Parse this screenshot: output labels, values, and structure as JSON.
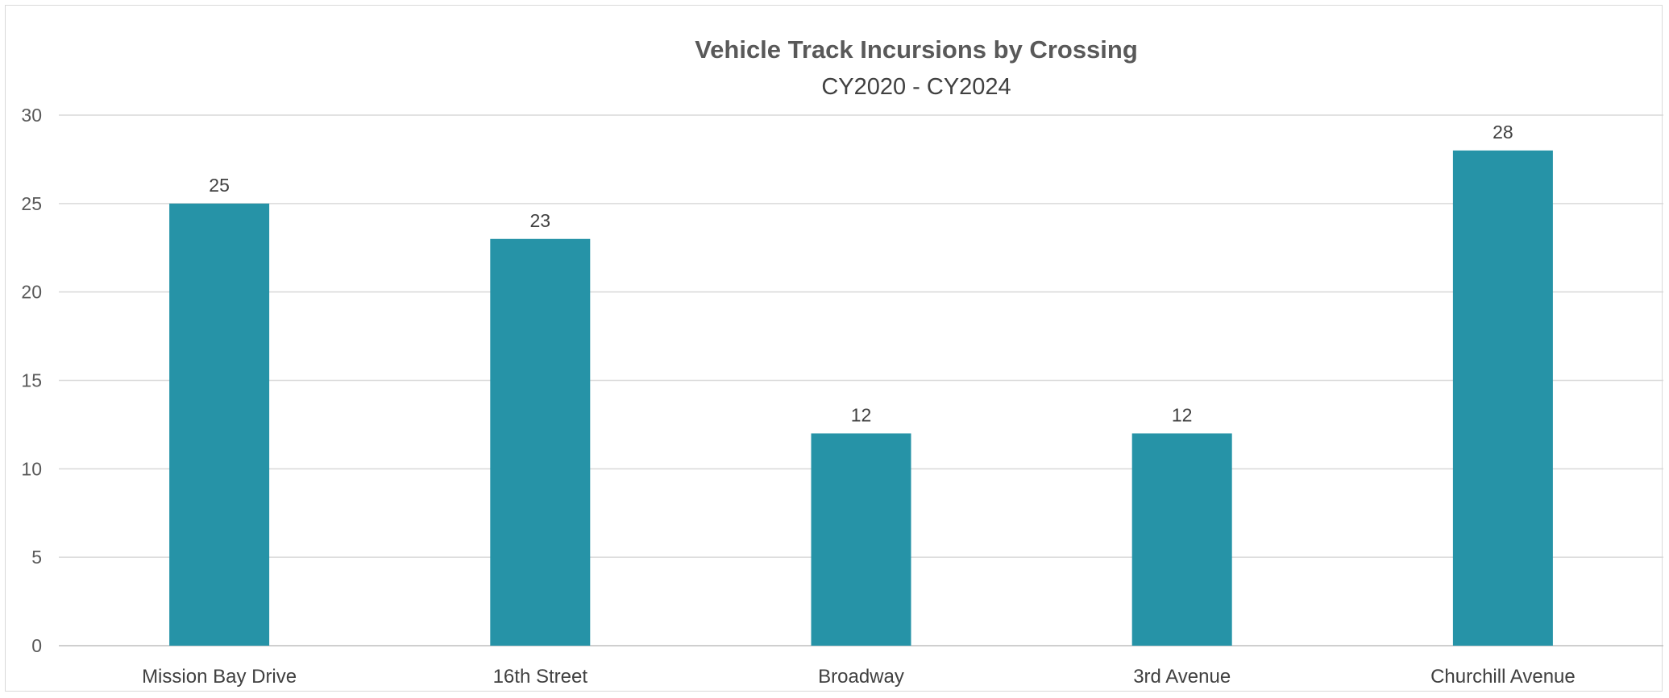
{
  "chart_data": {
    "type": "bar",
    "title": "Vehicle Track Incursions by Crossing",
    "subtitle": "CY2020 - CY2024",
    "xlabel": "",
    "ylabel": "",
    "categories": [
      "Mission Bay Drive",
      "16th Street",
      "Broadway",
      "3rd Avenue",
      "Churchill Avenue"
    ],
    "values": [
      25,
      23,
      12,
      12,
      28
    ],
    "ylim": [
      0,
      30
    ],
    "yticks": [
      0,
      5,
      10,
      15,
      20,
      25,
      30
    ],
    "grid": true,
    "legend": "none",
    "bar_color": "#2693a7",
    "data_labels": true
  }
}
